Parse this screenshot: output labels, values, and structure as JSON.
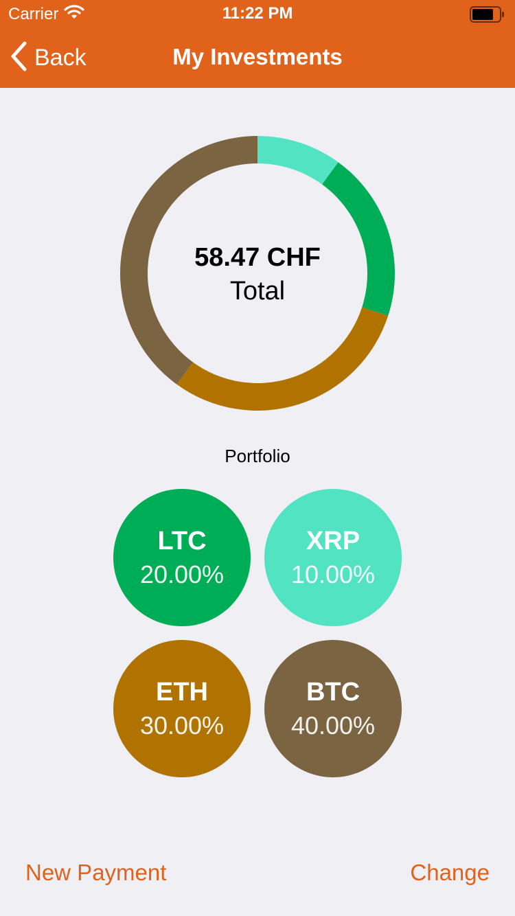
{
  "status_bar": {
    "carrier": "Carrier",
    "time": "11:22 PM"
  },
  "nav": {
    "back_label": "Back",
    "title": "My Investments"
  },
  "total": {
    "value": "58.47 CHF",
    "label": "Total"
  },
  "portfolio_label": "Portfolio",
  "chart_data": {
    "type": "pie",
    "categories": [
      "XRP",
      "LTC",
      "ETH",
      "BTC"
    ],
    "values": [
      10,
      20,
      30,
      40
    ],
    "colors": [
      "#52e3c2",
      "#00ad57",
      "#b07300",
      "#7b6441"
    ]
  },
  "assets": [
    {
      "symbol": "LTC",
      "percent": "20.00%",
      "color": "#00ad57"
    },
    {
      "symbol": "XRP",
      "percent": "10.00%",
      "color": "#52e3c2"
    },
    {
      "symbol": "ETH",
      "percent": "30.00%",
      "color": "#b07300"
    },
    {
      "symbol": "BTC",
      "percent": "40.00%",
      "color": "#7b6441"
    }
  ],
  "footer": {
    "new_payment_label": "New Payment",
    "change_label": "Change"
  },
  "colors": {
    "accent": "#e0621b",
    "background": "#efeff4"
  }
}
